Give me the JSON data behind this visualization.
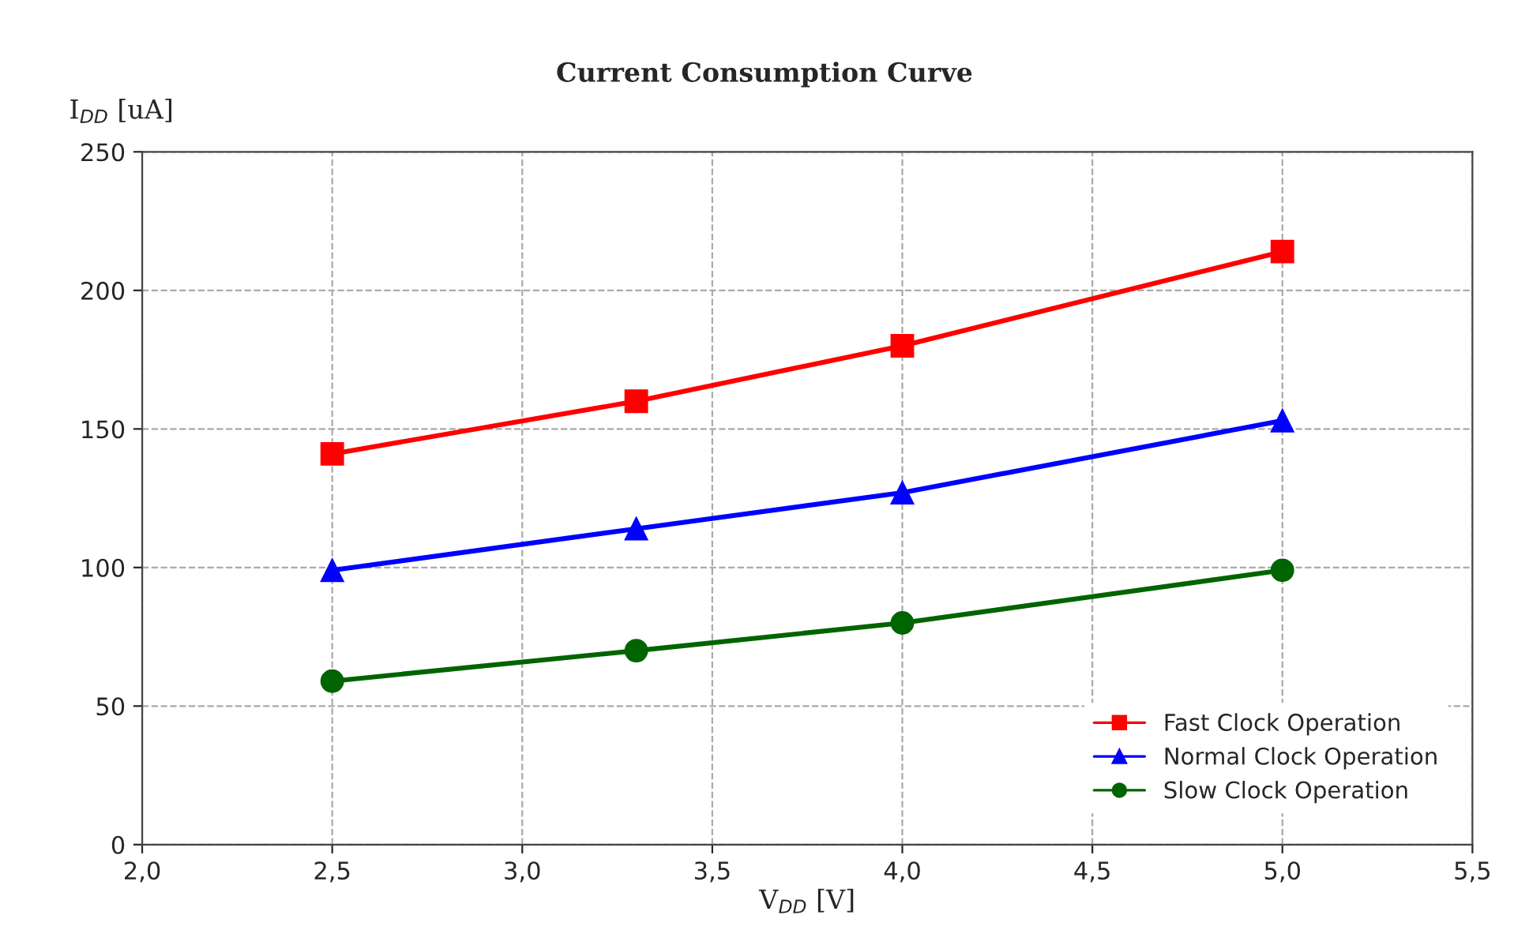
{
  "chart_data": {
    "type": "line",
    "title": "Current Consumption Curve",
    "xlabel": "V$_{DD}$ [V]",
    "ylabel": "I$_{DD}$ [uA]",
    "x": [
      2.5,
      3.3,
      4.0,
      5.0
    ],
    "series": [
      {
        "name": "Fast Clock Operation",
        "color": "#ff0000",
        "marker": "square",
        "values": [
          141,
          160,
          180,
          214
        ]
      },
      {
        "name": "Normal Clock Operation",
        "color": "#0000ff",
        "marker": "triangle",
        "values": [
          99,
          114,
          127,
          153
        ]
      },
      {
        "name": "Slow Clock Operation",
        "color": "#006400",
        "marker": "circle",
        "values": [
          59,
          70,
          80,
          99
        ]
      }
    ],
    "xlim": [
      2.0,
      5.5
    ],
    "xticks": [
      {
        "value": 2.0,
        "label": "2,0"
      },
      {
        "value": 2.5,
        "label": "2,5"
      },
      {
        "value": 3.0,
        "label": "3,0"
      },
      {
        "value": 3.5,
        "label": "3,5"
      },
      {
        "value": 4.0,
        "label": "4,0"
      },
      {
        "value": 4.5,
        "label": "4,5"
      },
      {
        "value": 5.0,
        "label": "5,0"
      },
      {
        "value": 5.5,
        "label": "5,5"
      }
    ],
    "ylim": [
      0,
      250
    ],
    "yticks": [
      0,
      50,
      100,
      150,
      200,
      250
    ],
    "grid": true,
    "legend": "bottom right",
    "line_style": "solid"
  }
}
